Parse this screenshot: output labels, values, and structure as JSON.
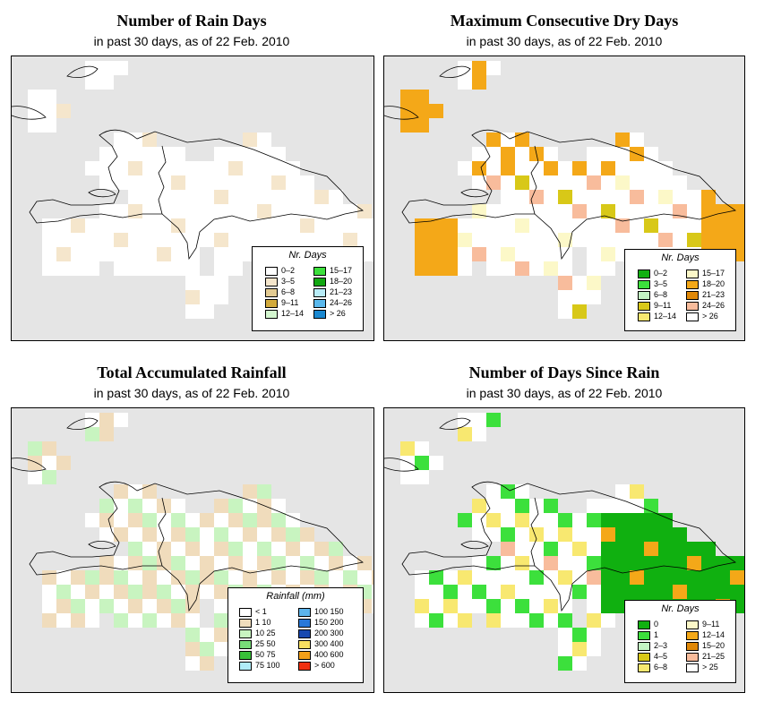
{
  "panels": [
    {
      "id": "rain-days",
      "title": "Number of Rain Days",
      "subtitle": "in past 30 days, as of  22 Feb. 2010",
      "legend": {
        "title": "Nr. Days",
        "col1": [
          {
            "label": "0–2",
            "color": "#ffffff"
          },
          {
            "label": "3–5",
            "color": "#f5e6cc"
          },
          {
            "label": "6–8",
            "color": "#e3cb92"
          },
          {
            "label": "9–11",
            "color": "#d2aa3c"
          },
          {
            "label": "12–14",
            "color": "#d4f7d0"
          }
        ],
        "col2": [
          {
            "label": "15–17",
            "color": "#3ce03c"
          },
          {
            "label": "18–20",
            "color": "#12a812"
          },
          {
            "label": "21–23",
            "color": "#b8ecf8"
          },
          {
            "label": "24–26",
            "color": "#5ab8ec"
          },
          {
            "label": "> 26",
            "color": "#1a88d0"
          }
        ]
      }
    },
    {
      "id": "dry-days",
      "title": "Maximum Consecutive Dry Days",
      "subtitle": "in past 30 days, as of  22 Feb. 2010",
      "legend": {
        "title": "Nr. Days",
        "col1": [
          {
            "label": "0–2",
            "color": "#10b010"
          },
          {
            "label": "3–5",
            "color": "#3ce03c"
          },
          {
            "label": "6–8",
            "color": "#c4f4c4"
          },
          {
            "label": "9–11",
            "color": "#d8c818"
          },
          {
            "label": "12–14",
            "color": "#f8e870"
          }
        ],
        "col2": [
          {
            "label": "15–17",
            "color": "#fcf8c8"
          },
          {
            "label": "18–20",
            "color": "#f4a818"
          },
          {
            "label": "21–23",
            "color": "#e08808"
          },
          {
            "label": "24–26",
            "color": "#f8bc9c"
          },
          {
            "label": "> 26",
            "color": "#ffffff"
          }
        ]
      }
    },
    {
      "id": "rainfall",
      "title": "Total Accumulated Rainfall",
      "subtitle": "in past 30 days, as of  22 Feb. 2010",
      "legend": {
        "title": "Rainfall (mm)",
        "col1": [
          {
            "label": "< 1",
            "color": "#ffffff"
          },
          {
            "label": "1    10",
            "color": "#f0dcbc"
          },
          {
            "label": "10    25",
            "color": "#c8f4c0"
          },
          {
            "label": "25    50",
            "color": "#78dc78"
          },
          {
            "label": "50    75",
            "color": "#38c038"
          },
          {
            "label": "75    100",
            "color": "#b0ecf8"
          }
        ],
        "col2": [
          {
            "label": "100   150",
            "color": "#5cb4ec"
          },
          {
            "label": "150   200",
            "color": "#2878d8"
          },
          {
            "label": "200   300",
            "color": "#1848b0"
          },
          {
            "label": "300   400",
            "color": "#f8e060"
          },
          {
            "label": "400   600",
            "color": "#f4a018"
          },
          {
            "label": "> 600",
            "color": "#f03010"
          }
        ]
      }
    },
    {
      "id": "since-rain",
      "title": "Number of Days Since Rain",
      "subtitle": "in past 30 days, as of  22 Feb. 2010",
      "legend": {
        "title": "Nr. Days",
        "col1": [
          {
            "label": "0",
            "color": "#10b010"
          },
          {
            "label": "1",
            "color": "#3ce03c"
          },
          {
            "label": "2–3",
            "color": "#c4f4c4"
          },
          {
            "label": "4–5",
            "color": "#d8c818"
          },
          {
            "label": "6–8",
            "color": "#f8e870"
          }
        ],
        "col2": [
          {
            "label": "9–11",
            "color": "#fcf8c8"
          },
          {
            "label": "12–14",
            "color": "#f4a818"
          },
          {
            "label": "15–20",
            "color": "#e08808"
          },
          {
            "label": "21–25",
            "color": "#f8bc9c"
          },
          {
            "label": "> 25",
            "color": "#ffffff"
          }
        ]
      }
    }
  ]
}
